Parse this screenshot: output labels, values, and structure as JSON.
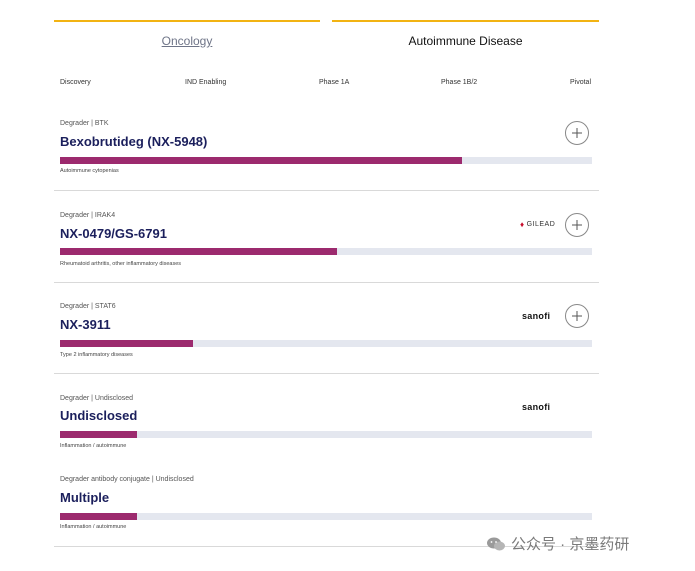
{
  "tabs": [
    {
      "label": "Oncology",
      "active": false
    },
    {
      "label": "Autoimmune Disease",
      "active": true
    }
  ],
  "phases": [
    "Discovery",
    "IND Enabling",
    "Phase 1A",
    "Phase 1B/2",
    "Pivotal"
  ],
  "programs": [
    {
      "category": "Degrader | BTK",
      "name": "Bexobrutideg (NX-5948)",
      "progress": 0.755,
      "indication": "Autoimmune cytopenias",
      "partner": "",
      "expandable": true
    },
    {
      "category": "Degrader | IRAK4",
      "name": "NX-0479/GS-6791",
      "progress": 0.52,
      "indication": "Rheumatoid arthritis, other inflammatory diseases",
      "partner": "GILEAD",
      "expandable": true
    },
    {
      "category": "Degrader | STAT6",
      "name": "NX-3911",
      "progress": 0.25,
      "indication": "Type 2 inflammatory diseases",
      "partner": "sanofi",
      "expandable": true
    },
    {
      "category": "Degrader | Undisclosed",
      "name": "Undisclosed",
      "progress": 0.145,
      "indication": "Inflammation / autoimmune",
      "partner": "sanofi",
      "expandable": false
    },
    {
      "category": "Degrader antibody conjugate | Undisclosed",
      "name": "Multiple",
      "progress": 0.145,
      "indication": "Inflammation / autoimmune",
      "partner": "",
      "expandable": false
    }
  ],
  "colors": {
    "accent_tab": "#f2b313",
    "progress_fill": "#9c2a6e",
    "track": "#e4e7ef",
    "title": "#1b1f5c"
  },
  "watermark": "公众号 · 京墨药研"
}
